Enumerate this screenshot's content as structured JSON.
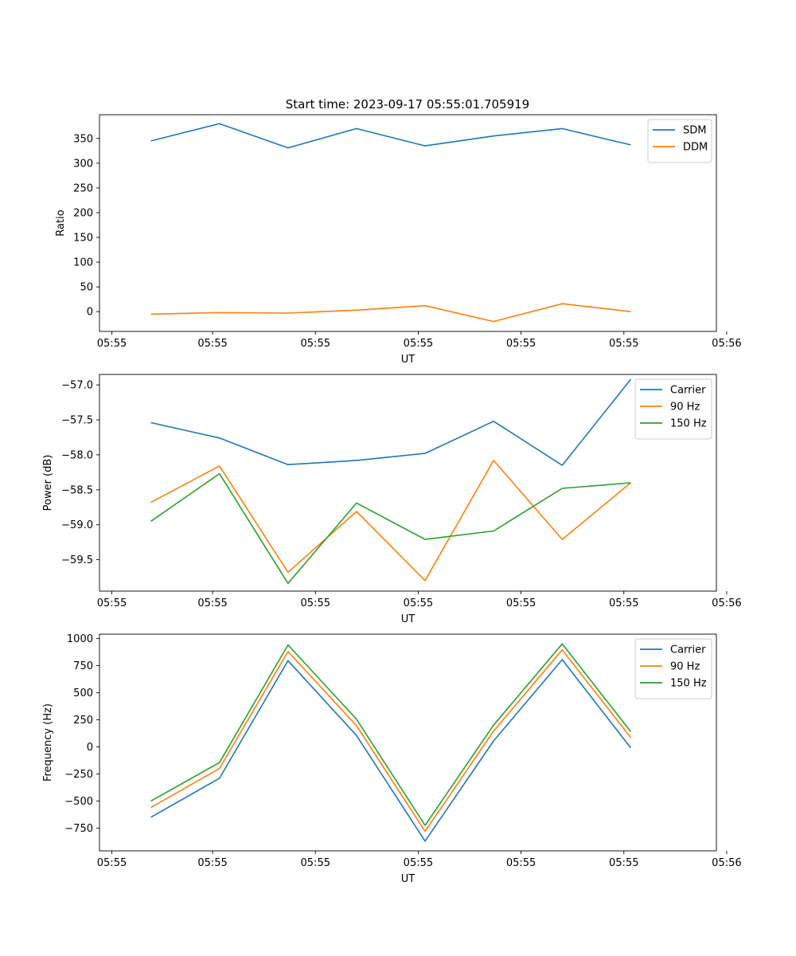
{
  "figure": {
    "title": "Start time: 2023-09-17 05:55:01.705919"
  },
  "colors": {
    "c0": "#1f77b4",
    "c1": "#ff7f0e",
    "c2": "#2ca02c"
  },
  "chart_data": [
    {
      "type": "line",
      "title": "Start time: 2023-09-17 05:55:01.705919",
      "xlabel": "UT",
      "ylabel": "Ratio",
      "x": [
        1,
        2,
        3,
        4,
        5,
        6,
        7,
        8
      ],
      "xlim": [
        0.25,
        9.25
      ],
      "xticks": [
        0.43,
        1.9,
        3.4,
        4.9,
        6.4,
        7.9,
        9.4
      ],
      "xtick_labels": [
        "05:55",
        "05:55",
        "05:55",
        "05:55",
        "05:55",
        "05:55",
        "05:56"
      ],
      "ylim": [
        -40,
        398
      ],
      "yticks": [
        0,
        50,
        100,
        150,
        200,
        250,
        300,
        350
      ],
      "ytick_labels": [
        "0",
        "50",
        "100",
        "150",
        "200",
        "250",
        "300",
        "350"
      ],
      "legend": "top-right",
      "series": [
        {
          "name": "SDM",
          "color": "#1f77b4",
          "values": [
            345,
            380,
            331,
            370,
            335,
            355,
            370,
            337
          ]
        },
        {
          "name": "DDM",
          "color": "#ff7f0e",
          "values": [
            -5,
            -2,
            -3,
            3,
            12,
            -20,
            16,
            0
          ]
        }
      ]
    },
    {
      "type": "line",
      "title": "",
      "xlabel": "UT",
      "ylabel": "Power (dB)",
      "x": [
        1,
        2,
        3,
        4,
        5,
        6,
        7,
        8
      ],
      "xlim": [
        0.25,
        9.25
      ],
      "xticks": [
        0.43,
        1.9,
        3.4,
        4.9,
        6.4,
        7.9,
        9.4
      ],
      "xtick_labels": [
        "05:55",
        "05:55",
        "05:55",
        "05:55",
        "05:55",
        "05:55",
        "05:56"
      ],
      "ylim": [
        -59.95,
        -56.85
      ],
      "yticks": [
        -59.5,
        -59.0,
        -58.5,
        -58.0,
        -57.5,
        -57.0
      ],
      "ytick_labels": [
        "−59.5",
        "−59.0",
        "−58.5",
        "−58.0",
        "−57.5",
        "−57.0"
      ],
      "legend": "top-right",
      "series": [
        {
          "name": "Carrier",
          "color": "#1f77b4",
          "values": [
            -57.54,
            -57.76,
            -58.14,
            -58.08,
            -57.98,
            -57.52,
            -58.15,
            -56.92
          ]
        },
        {
          "name": "90 Hz",
          "color": "#ff7f0e",
          "values": [
            -58.68,
            -58.16,
            -59.68,
            -58.81,
            -59.8,
            -58.08,
            -59.21,
            -58.4
          ]
        },
        {
          "name": "150 Hz",
          "color": "#2ca02c",
          "values": [
            -58.95,
            -58.27,
            -59.84,
            -58.69,
            -59.21,
            -59.09,
            -58.48,
            -58.4
          ]
        }
      ]
    },
    {
      "type": "line",
      "title": "",
      "xlabel": "UT",
      "ylabel": "Frequency (Hz)",
      "x": [
        1,
        2,
        3,
        4,
        5,
        6,
        7,
        8
      ],
      "xlim": [
        0.25,
        9.25
      ],
      "xticks": [
        0.43,
        1.9,
        3.4,
        4.9,
        6.4,
        7.9,
        9.4
      ],
      "xtick_labels": [
        "05:55",
        "05:55",
        "05:55",
        "05:55",
        "05:55",
        "05:55",
        "05:56"
      ],
      "ylim": [
        -960,
        1040
      ],
      "yticks": [
        -750,
        -500,
        -250,
        0,
        250,
        500,
        750,
        1000
      ],
      "ytick_labels": [
        "−750",
        "−500",
        "−250",
        "0",
        "250",
        "500",
        "750",
        "1000"
      ],
      "legend": "top-right",
      "series": [
        {
          "name": "Carrier",
          "color": "#1f77b4",
          "values": [
            -650,
            -290,
            795,
            105,
            -870,
            55,
            805,
            -10
          ]
        },
        {
          "name": "90 Hz",
          "color": "#ff7f0e",
          "values": [
            -560,
            -200,
            880,
            195,
            -780,
            145,
            895,
            85
          ]
        },
        {
          "name": "150 Hz",
          "color": "#2ca02c",
          "values": [
            -500,
            -145,
            940,
            255,
            -725,
            200,
            950,
            140
          ]
        }
      ]
    }
  ]
}
